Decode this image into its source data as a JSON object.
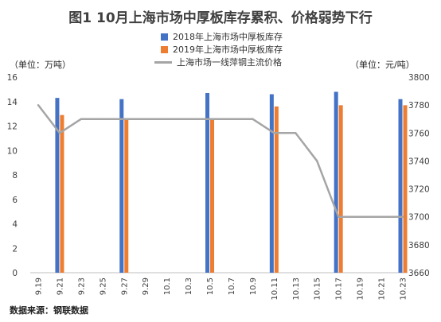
{
  "chart_data": {
    "type": "bar",
    "title": "图1 10月上海市场中厚板库存累积、价格弱势下行",
    "left_unit": "（单位：万吨）",
    "right_unit": "（单位：元/吨）",
    "source": "数据来源：钢联数据",
    "categories": [
      "9.19",
      "9.21",
      "9.23",
      "9.25",
      "9.27",
      "9.29",
      "10.1",
      "10.3",
      "10.5",
      "10.7",
      "10.9",
      "10.11",
      "10.13",
      "10.15",
      "10.17",
      "10.19",
      "10.21",
      "10.23"
    ],
    "y_left": {
      "lim": [
        0,
        16
      ],
      "ticks": [
        "0",
        "2",
        "4",
        "6",
        "8",
        "10",
        "12",
        "14",
        "16"
      ]
    },
    "y_right": {
      "lim": [
        3660,
        3800
      ],
      "ticks": [
        "3660",
        "3680",
        "3700",
        "3720",
        "3740",
        "3760",
        "3780",
        "3800"
      ]
    },
    "grid": false,
    "legend_position": "top",
    "series": [
      {
        "name": "2018年上海市场中厚板库存",
        "kind": "bar",
        "axis": "left",
        "color": "#4472C4",
        "points": [
          {
            "x": "9.21",
            "y": 14.3
          },
          {
            "x": "9.27",
            "y": 14.2
          },
          {
            "x": "10.5",
            "y": 14.7
          },
          {
            "x": "10.11",
            "y": 14.6
          },
          {
            "x": "10.17",
            "y": 14.8
          },
          {
            "x": "10.23",
            "y": 14.2
          }
        ]
      },
      {
        "name": "2019年上海市场中厚板库存",
        "kind": "bar",
        "axis": "left",
        "color": "#ED7D31",
        "points": [
          {
            "x": "9.21",
            "y": 12.9
          },
          {
            "x": "9.27",
            "y": 12.6
          },
          {
            "x": "10.5",
            "y": 12.5
          },
          {
            "x": "10.11",
            "y": 13.6
          },
          {
            "x": "10.17",
            "y": 13.7
          },
          {
            "x": "10.23",
            "y": 13.7
          }
        ]
      },
      {
        "name": "上海市场一线萍钢主流价格",
        "kind": "line",
        "axis": "right",
        "color": "#A5A5A5",
        "points": [
          {
            "x": "9.19",
            "y": 3780
          },
          {
            "x": "9.21",
            "y": 3760
          },
          {
            "x": "9.23",
            "y": 3770
          },
          {
            "x": "9.25",
            "y": 3770
          },
          {
            "x": "9.27",
            "y": 3770
          },
          {
            "x": "9.29",
            "y": 3770
          },
          {
            "x": "10.1",
            "y": 3770
          },
          {
            "x": "10.3",
            "y": 3770
          },
          {
            "x": "10.5",
            "y": 3770
          },
          {
            "x": "10.7",
            "y": 3770
          },
          {
            "x": "10.9",
            "y": 3770
          },
          {
            "x": "10.11",
            "y": 3760
          },
          {
            "x": "10.13",
            "y": 3760
          },
          {
            "x": "10.15",
            "y": 3740
          },
          {
            "x": "10.17",
            "y": 3700
          },
          {
            "x": "10.19",
            "y": 3700
          },
          {
            "x": "10.21",
            "y": 3700
          },
          {
            "x": "10.23",
            "y": 3700
          }
        ]
      }
    ]
  }
}
